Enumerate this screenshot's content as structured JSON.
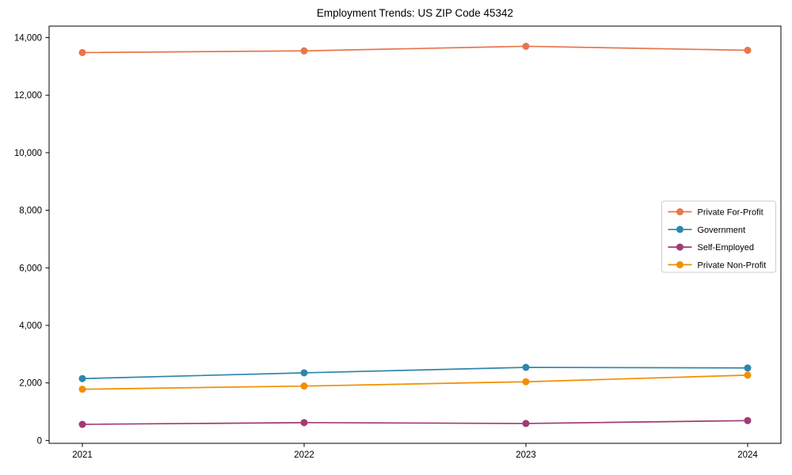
{
  "chart_data": {
    "type": "line",
    "title": "Employment Trends: US ZIP Code 45342",
    "xlabel": "",
    "ylabel": "",
    "x": [
      2021,
      2022,
      2023,
      2024
    ],
    "x_tick_labels": [
      "2021",
      "2022",
      "2023",
      "2024"
    ],
    "series": [
      {
        "name": "Private For-Profit",
        "color": "#E8764B",
        "values": [
          13480,
          13540,
          13700,
          13560
        ]
      },
      {
        "name": "Government",
        "color": "#2E86AB",
        "values": [
          2150,
          2350,
          2540,
          2520
        ]
      },
      {
        "name": "Self-Employed",
        "color": "#A23B72",
        "values": [
          560,
          620,
          590,
          690
        ]
      },
      {
        "name": "Private Non-Profit",
        "color": "#F18F01",
        "values": [
          1780,
          1890,
          2040,
          2270
        ]
      }
    ],
    "yticks": [
      0,
      2000,
      4000,
      6000,
      8000,
      10000,
      12000,
      14000
    ],
    "ytick_labels": [
      "0",
      "2,000",
      "4,000",
      "6,000",
      "8,000",
      "10,000",
      "12,000",
      "14,000"
    ],
    "xlim": [
      2020.85,
      2024.15
    ],
    "ylim": [
      -100,
      14400
    ],
    "grid": false,
    "marker": "circle",
    "legend_position": "center-right",
    "axis_color": "#000000",
    "legend_border_color": "#cccccc",
    "background_color": "#ffffff"
  }
}
